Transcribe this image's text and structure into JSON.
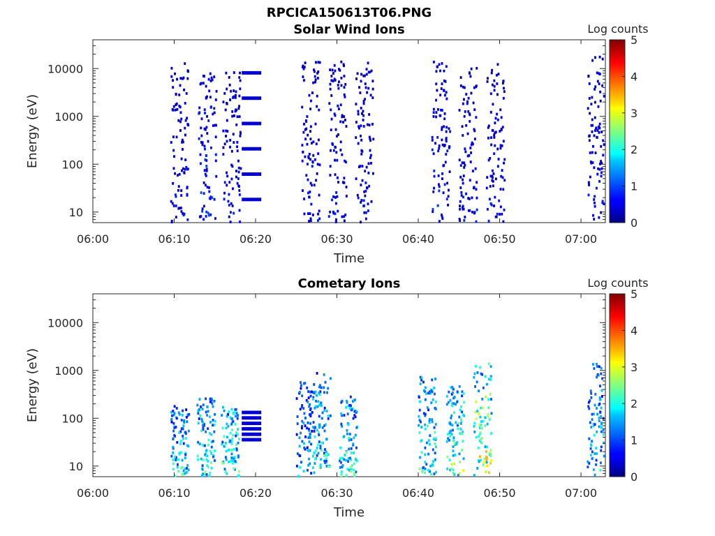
{
  "figure": {
    "title": "RPCICA150613T06.PNG"
  },
  "chart_data": [
    {
      "type": "heatmap",
      "title": "Solar Wind Ions",
      "xlabel": "Time",
      "ylabel": "Energy (eV)",
      "x_ticks": [
        "06:00",
        "06:10",
        "06:20",
        "06:30",
        "06:40",
        "06:50",
        "07:00"
      ],
      "y_ticks": [
        "10",
        "100",
        "1000",
        "10000"
      ],
      "xlim_minutes_after_0600": [
        0,
        63
      ],
      "ylim": [
        6,
        40000
      ],
      "yscale": "log",
      "colorbar": {
        "label": "Log counts",
        "range": [
          0,
          5
        ],
        "ticks": [
          "0",
          "1",
          "2",
          "3",
          "4",
          "5"
        ]
      },
      "bursts": [
        {
          "t": 10.6,
          "e_min": 6,
          "e_max": 16000,
          "level": 0.6
        },
        {
          "t": 14.0,
          "e_min": 6,
          "e_max": 10000,
          "level": 0.8
        },
        {
          "t": 17.0,
          "e_min": 6,
          "e_max": 12000,
          "level": 0.6
        },
        {
          "t": 19.5,
          "e_min": 18,
          "e_max": 8000,
          "level": 0.4,
          "banded": true
        },
        {
          "t": 26.7,
          "e_min": 6,
          "e_max": 16000,
          "level": 0.6
        },
        {
          "t": 30.0,
          "e_min": 6,
          "e_max": 15000,
          "level": 0.6
        },
        {
          "t": 33.3,
          "e_min": 6,
          "e_max": 14000,
          "level": 0.6
        },
        {
          "t": 42.7,
          "e_min": 6,
          "e_max": 15000,
          "level": 0.7
        },
        {
          "t": 46.0,
          "e_min": 6,
          "e_max": 13000,
          "level": 0.6
        },
        {
          "t": 49.4,
          "e_min": 6,
          "e_max": 14000,
          "level": 0.6
        },
        {
          "t": 61.8,
          "e_min": 6,
          "e_max": 20000,
          "level": 0.6
        }
      ]
    },
    {
      "type": "heatmap",
      "title": "Cometary Ions",
      "xlabel": "Time",
      "ylabel": "Energy (eV)",
      "x_ticks": [
        "06:00",
        "06:10",
        "06:20",
        "06:30",
        "06:40",
        "06:50",
        "07:00"
      ],
      "y_ticks": [
        "10",
        "100",
        "1000",
        "10000"
      ],
      "xlim_minutes_after_0600": [
        0,
        63
      ],
      "ylim": [
        6,
        40000
      ],
      "yscale": "log",
      "colorbar": {
        "label": "Log counts",
        "range": [
          0,
          5
        ],
        "ticks": [
          "0",
          "1",
          "2",
          "3",
          "4",
          "5"
        ]
      },
      "bursts": [
        {
          "t": 10.6,
          "e_min": 6,
          "e_max": 200,
          "level": 1.8
        },
        {
          "t": 13.8,
          "e_min": 6,
          "e_max": 300,
          "level": 1.9
        },
        {
          "t": 16.8,
          "e_min": 6,
          "e_max": 200,
          "level": 2.2
        },
        {
          "t": 19.5,
          "e_min": 35,
          "e_max": 130,
          "level": 0.4,
          "banded": true
        },
        {
          "t": 26.0,
          "e_min": 6,
          "e_max": 600,
          "level": 1.4
        },
        {
          "t": 28.0,
          "e_min": 10,
          "e_max": 1000,
          "level": 1.8
        },
        {
          "t": 31.3,
          "e_min": 6,
          "e_max": 300,
          "level": 2.0
        },
        {
          "t": 41.0,
          "e_min": 6,
          "e_max": 800,
          "level": 2.0
        },
        {
          "t": 44.5,
          "e_min": 6,
          "e_max": 500,
          "level": 2.3
        },
        {
          "t": 47.8,
          "e_min": 6,
          "e_max": 1500,
          "level": 2.8
        },
        {
          "t": 61.8,
          "e_min": 6,
          "e_max": 1600,
          "level": 1.7
        }
      ]
    }
  ]
}
